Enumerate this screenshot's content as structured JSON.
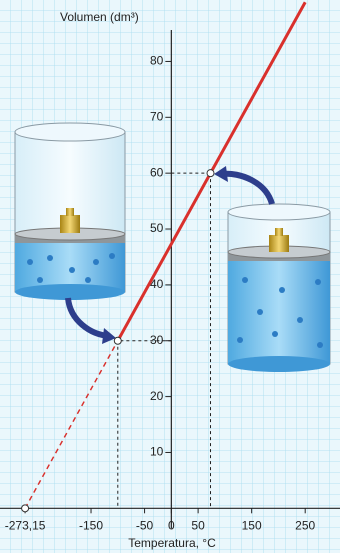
{
  "chart_data": {
    "type": "line",
    "y_label": "Volumen (dm³)",
    "x_label": "Temperatura, °C",
    "xlim": [
      -320,
      315
    ],
    "ylim": [
      -8,
      91
    ],
    "xticks": [
      {
        "value": -273.15,
        "label": "-273,15"
      },
      -150,
      -50,
      0,
      50,
      150,
      250
    ],
    "yticks": [
      10,
      20,
      30,
      40,
      50,
      60,
      70,
      80
    ],
    "grid": true,
    "series": [
      {
        "color": "#d9302c",
        "dashed": true,
        "x": [
          -273.15,
          -100
        ],
        "values": [
          0,
          30
        ]
      },
      {
        "color": "#d9302c",
        "dashed": false,
        "x": [
          -100,
          73.15,
          250
        ],
        "values": [
          30,
          60,
          90.6
        ]
      }
    ],
    "points": {
      "x": [
        -273.15,
        -100,
        73.15
      ],
      "values": [
        0,
        30,
        60
      ]
    }
  }
}
